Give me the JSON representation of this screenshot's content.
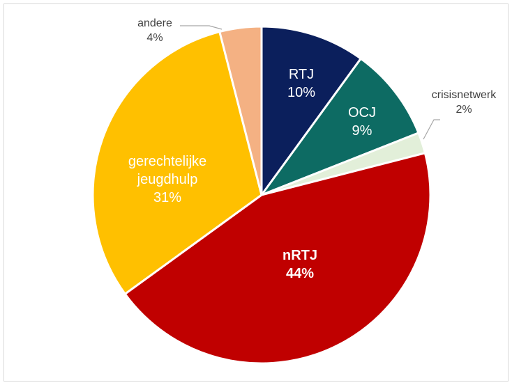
{
  "chart_data": {
    "type": "pie",
    "categories": [
      "RTJ",
      "OCJ",
      "crisisnetwerk",
      "nRTJ",
      "gerechtelijke jeugdhulp",
      "andere"
    ],
    "values": [
      10,
      9,
      2,
      44,
      31,
      4
    ],
    "value_labels": [
      "10%",
      "9%",
      "2%",
      "44%",
      "31%",
      "4%"
    ],
    "colors": [
      "#0b1f5c",
      "#0d6b63",
      "#e2efd9",
      "#c00000",
      "#ffc000",
      "#f4b183"
    ]
  }
}
